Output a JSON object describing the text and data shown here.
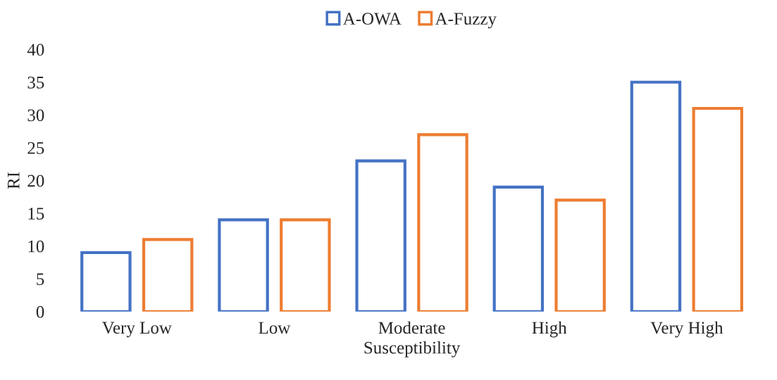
{
  "chart_data": {
    "type": "bar",
    "xlabel": "Susceptibility",
    "ylabel": "RI",
    "categories": [
      "Very Low",
      "Low",
      "Moderate",
      "High",
      "Very High"
    ],
    "series": [
      {
        "name": "A-OWA",
        "color": "#4472c4",
        "values": [
          9,
          14,
          23,
          19,
          35
        ]
      },
      {
        "name": "A-Fuzzy",
        "color": "#ed7d31",
        "values": [
          11,
          14,
          27,
          17,
          31
        ]
      }
    ],
    "ylim": [
      0,
      40
    ],
    "yticks": [
      0,
      5,
      10,
      15,
      20,
      25,
      30,
      35,
      40
    ],
    "grid": false,
    "legend": "top"
  }
}
